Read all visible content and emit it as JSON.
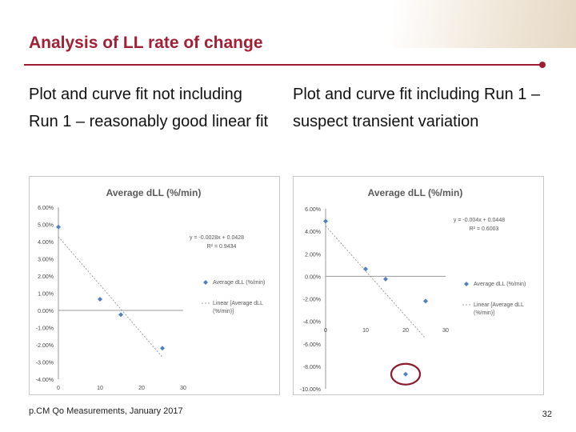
{
  "slide": {
    "title": "Analysis of LL rate of change",
    "left_text": "Plot and curve fit not including Run 1 – reasonably good linear fit",
    "right_text": "Plot and curve fit including Run 1 – suspect transient variation",
    "footer": "p.CM Qo Measurements, January 2017",
    "page_number": "32",
    "accent_color": "#9e1b32",
    "title_color": "#a31f34"
  },
  "chart_data": [
    {
      "type": "scatter",
      "title": "Average dLL (%/min)",
      "x_ticks": [
        "0",
        "10",
        "20",
        "30"
      ],
      "y_ticks": [
        "6.00%",
        "5.00%",
        "4.00%",
        "3.00%",
        "2.00%",
        "1.00%",
        "0.00%",
        "-1.00%",
        "-2.00%",
        "-3.00%",
        "-4.00%"
      ],
      "xlim": [
        0,
        30
      ],
      "ylim": [
        -4,
        6
      ],
      "points": [
        {
          "x": 0,
          "y": 4.85
        },
        {
          "x": 10,
          "y": 0.65
        },
        {
          "x": 15,
          "y": -0.25
        },
        {
          "x": 25,
          "y": -2.2
        }
      ],
      "trendline": {
        "slope": -0.0028,
        "intercept": 0.0428,
        "x_range": [
          0,
          25
        ]
      },
      "equation": "y = -0.0028x + 0.0428",
      "r_squared": "R² = 0.9434",
      "legend": [
        "Average dLL (%/min)",
        "Linear (Average dLL (%/min))"
      ],
      "legend_position": "right",
      "grid": false,
      "color": "#4f81bd"
    },
    {
      "type": "scatter",
      "title": "Average dLL (%/min)",
      "x_ticks": [
        "0",
        "10",
        "20",
        "30"
      ],
      "y_ticks": [
        "6.00%",
        "4.00%",
        "2.00%",
        "0.00%",
        "-2.00%",
        "-4.00%",
        "-6.00%",
        "-8.00%",
        "-10.00%"
      ],
      "xlim": [
        0,
        30
      ],
      "ylim": [
        -10,
        6
      ],
      "points": [
        {
          "x": 0,
          "y": 4.9
        },
        {
          "x": 10,
          "y": 0.65
        },
        {
          "x": 15,
          "y": -0.25
        },
        {
          "x": 25,
          "y": -2.2
        },
        {
          "x": 20,
          "y": -8.7
        }
      ],
      "highlight_point": 4,
      "trendline": {
        "slope": -0.004,
        "intercept": 0.0448,
        "x_range": [
          0,
          25
        ]
      },
      "equation": "y = -0.004x + 0.0448",
      "r_squared": "R² = 0.6003",
      "legend": [
        "Average dLL (%/min)",
        "Linear (Average dLL (%/min))"
      ],
      "legend_position": "right",
      "grid": false,
      "color": "#4f81bd",
      "highlight_color": "#8b1a2b"
    }
  ]
}
